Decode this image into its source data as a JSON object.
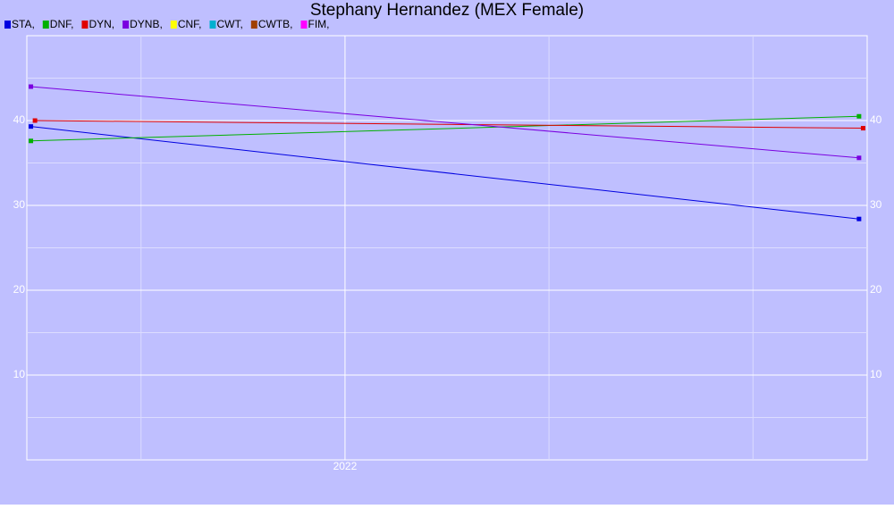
{
  "chart_data": {
    "type": "line",
    "title": "Stephany Hernandez (MEX Female)",
    "series": [
      {
        "name": "STA,",
        "color": "#0000e0",
        "x": [
          2021.23,
          2023.26
        ],
        "values": [
          39.3,
          28.4
        ]
      },
      {
        "name": "DNF,",
        "color": "#00b000",
        "x": [
          2021.23,
          2023.26
        ],
        "values": [
          37.6,
          40.5
        ]
      },
      {
        "name": "DYN,",
        "color": "#e00000",
        "x": [
          2021.24,
          2023.27
        ],
        "values": [
          40,
          39.1
        ]
      },
      {
        "name": "DYNB,",
        "color": "#7a00e0",
        "x": [
          2021.23,
          2023.26
        ],
        "values": [
          44,
          35.6
        ]
      },
      {
        "name": "CNF,",
        "color": "#ffff00",
        "x": [],
        "values": []
      },
      {
        "name": "CWT,",
        "color": "#00b0d0",
        "x": [],
        "values": []
      },
      {
        "name": "CWTB,",
        "color": "#a04000",
        "x": [],
        "values": []
      },
      {
        "name": "FIM,",
        "color": "#ff00ff",
        "x": [],
        "values": []
      }
    ],
    "xlim": [
      2021.22,
      2023.28
    ],
    "xticks": [
      2022
    ],
    "xminor": [
      2021.5,
      2022.5,
      2023
    ],
    "ylim": [
      0,
      50
    ],
    "yticks": [
      10,
      20,
      30,
      40
    ],
    "yminor": [
      5,
      15,
      25,
      35,
      45
    ],
    "grid": true,
    "background": "#bfbfff"
  }
}
